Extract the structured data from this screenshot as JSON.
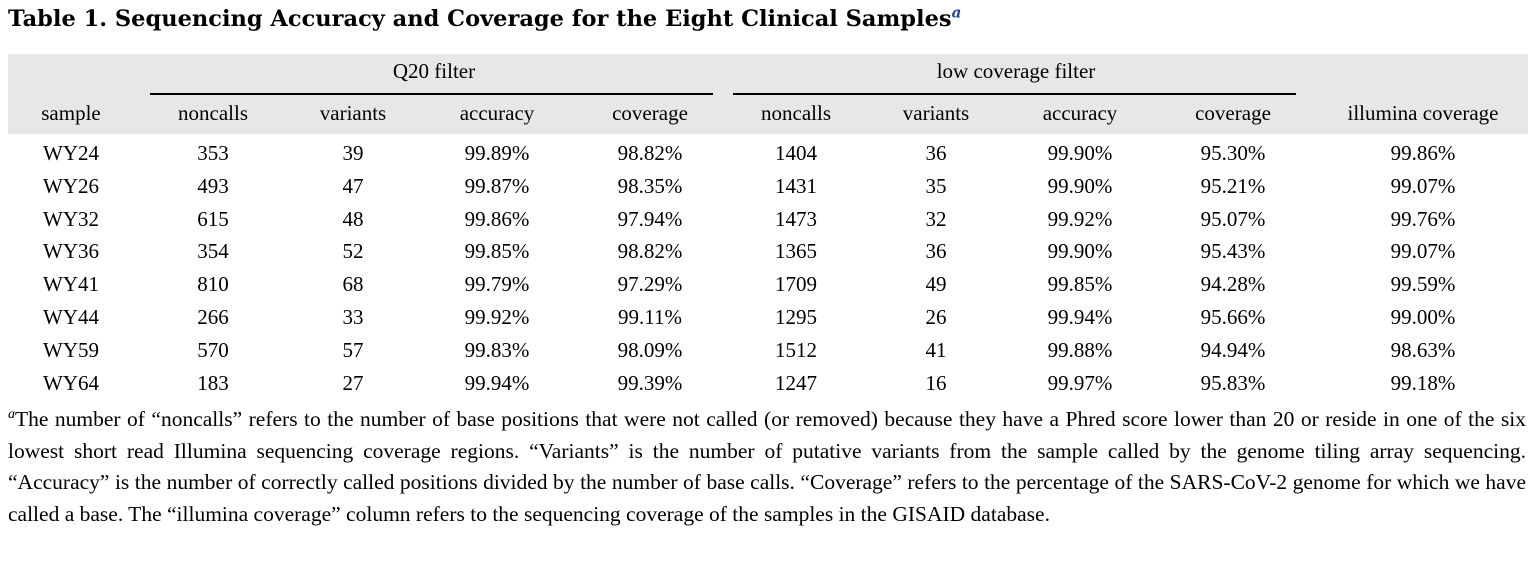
{
  "title": {
    "text": "Table 1. Sequencing Accuracy and Coverage for the Eight Clinical Samples",
    "footnote_marker": "a"
  },
  "header": {
    "groups": [
      "Q20 filter",
      "low coverage filter"
    ],
    "columns": [
      "sample",
      "noncalls",
      "variants",
      "accuracy",
      "coverage",
      "noncalls",
      "variants",
      "accuracy",
      "coverage",
      "illumina coverage"
    ]
  },
  "rows": [
    [
      "WY24",
      "353",
      "39",
      "99.89%",
      "98.82%",
      "1404",
      "36",
      "99.90%",
      "95.30%",
      "99.86%"
    ],
    [
      "WY26",
      "493",
      "47",
      "99.87%",
      "98.35%",
      "1431",
      "35",
      "99.90%",
      "95.21%",
      "99.07%"
    ],
    [
      "WY32",
      "615",
      "48",
      "99.86%",
      "97.94%",
      "1473",
      "32",
      "99.92%",
      "95.07%",
      "99.76%"
    ],
    [
      "WY36",
      "354",
      "52",
      "99.85%",
      "98.82%",
      "1365",
      "36",
      "99.90%",
      "95.43%",
      "99.07%"
    ],
    [
      "WY41",
      "810",
      "68",
      "99.79%",
      "97.29%",
      "1709",
      "49",
      "99.85%",
      "94.28%",
      "99.59%"
    ],
    [
      "WY44",
      "266",
      "33",
      "99.92%",
      "99.11%",
      "1295",
      "26",
      "99.94%",
      "95.66%",
      "99.00%"
    ],
    [
      "WY59",
      "570",
      "57",
      "99.83%",
      "98.09%",
      "1512",
      "41",
      "99.88%",
      "94.94%",
      "98.63%"
    ],
    [
      "WY64",
      "183",
      "27",
      "99.94%",
      "99.39%",
      "1247",
      "16",
      "99.97%",
      "95.83%",
      "99.18%"
    ]
  ],
  "footnote": {
    "marker": "a",
    "text": "The number of “noncalls” refers to the number of base positions that were not called (or removed) because they have a Phred score lower than 20 or reside in one of the six lowest short read Illumina sequencing coverage regions. “Variants” is the number of putative variants from the sample called by the genome tiling array sequencing. “Accuracy” is the number of correctly called positions divided by the number of base calls. “Coverage” refers to the percentage of the SARS-CoV-2 genome for which we have called a base. The “illumina coverage” column refers to the sequencing coverage of the samples in the GISAID database."
  },
  "colors": {
    "header_background": "#e7e7e7",
    "footnote_marker": "#1f3f8f",
    "text": "#000000"
  }
}
